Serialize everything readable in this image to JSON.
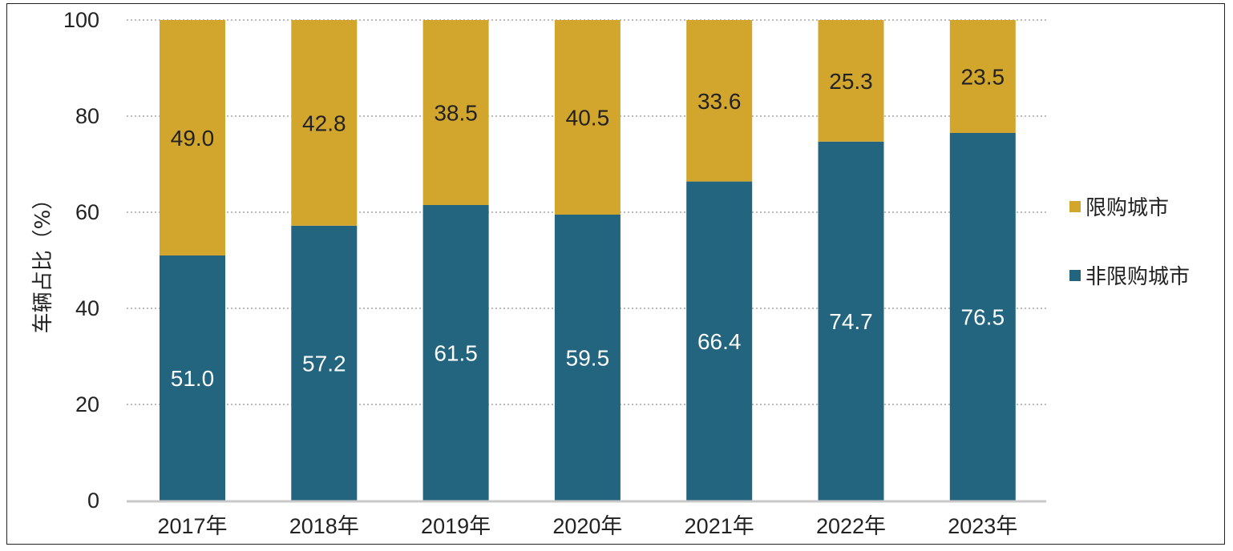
{
  "chart_data": {
    "type": "bar",
    "stacked": true,
    "title": "",
    "xlabel": "",
    "ylabel": "车辆占比（%）",
    "ylim": [
      0,
      100
    ],
    "yticks": [
      0,
      20,
      40,
      60,
      80,
      100
    ],
    "grid": true,
    "legend_position": "right",
    "categories": [
      "2017年",
      "2018年",
      "2019年",
      "2020年",
      "2021年",
      "2022年",
      "2023年"
    ],
    "series": [
      {
        "name": "非限购城市",
        "color": "#23647f",
        "values": [
          51.0,
          57.2,
          61.5,
          59.5,
          66.4,
          74.7,
          76.5
        ],
        "labels": [
          "51.0",
          "57.2",
          "61.5",
          "59.5",
          "66.4",
          "74.7",
          "76.5"
        ]
      },
      {
        "name": "限购城市",
        "color": "#d2a52d",
        "values": [
          49.0,
          42.8,
          38.5,
          40.5,
          33.6,
          25.3,
          23.5
        ],
        "labels": [
          "49.0",
          "42.8",
          "38.5",
          "40.5",
          "33.6",
          "25.3",
          "23.5"
        ]
      }
    ],
    "legend": [
      "限购城市",
      "非限购城市"
    ]
  }
}
